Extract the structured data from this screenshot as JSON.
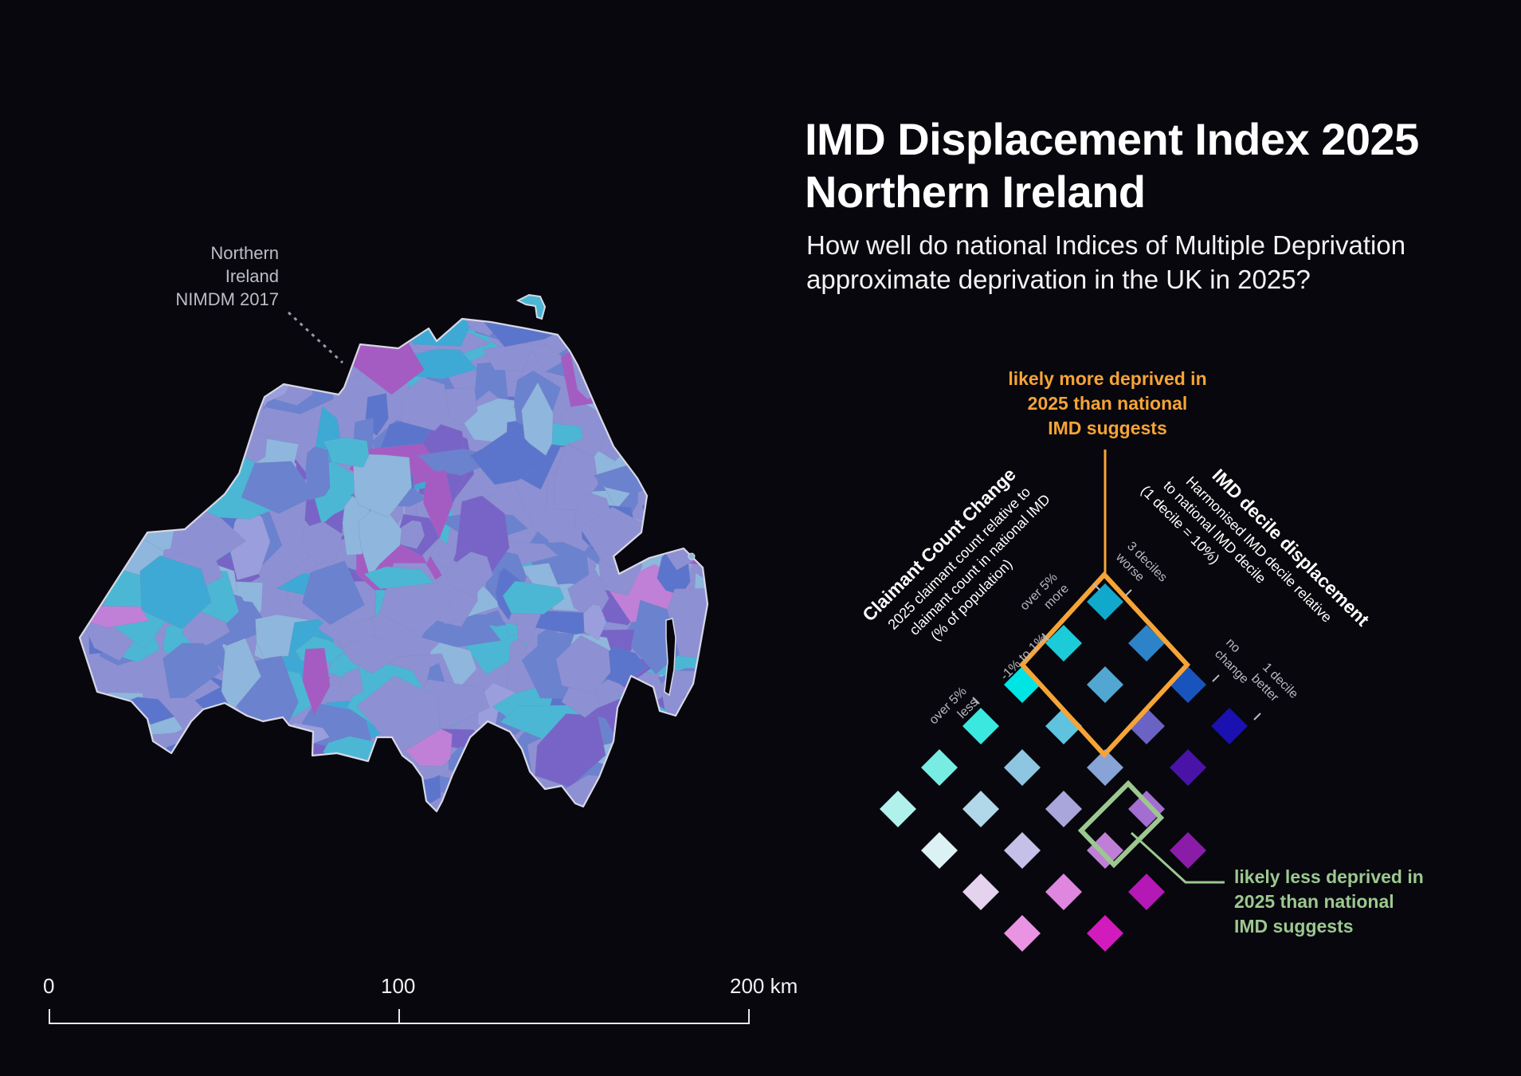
{
  "title_line1": "IMD Displacement Index 2025",
  "title_line2": "Northern Ireland",
  "subtitle_line1": "How well do national Indices of Multiple Deprivation",
  "subtitle_line2": "approximate deprivation in the UK in 2025?",
  "region_label": {
    "line1": "Northern",
    "line2": "Ireland",
    "line3": "NIMDM 2017"
  },
  "legend": {
    "callout_top": {
      "line1": "likely more deprived in",
      "line2": "2025 than national",
      "line3": "IMD suggests",
      "color": "#f6a437"
    },
    "callout_bottom": {
      "line1": "likely less deprived in",
      "line2": "2025 than national",
      "line3": "IMD suggests",
      "color": "#9cc890"
    },
    "left_axis": {
      "title": "Claimant Count Change",
      "desc1": "2025 claimant count relative to",
      "desc2": "claimant count in national IMD",
      "desc3": "(% of population)",
      "ticks": [
        {
          "l1": "over 5%",
          "l2": "more"
        },
        {
          "l1": "-1% to 1%",
          "l2": ""
        },
        {
          "l1": "over 5%",
          "l2": "less"
        }
      ]
    },
    "right_axis": {
      "title": "IMD decile displacement",
      "desc1": "Harmonised IMD decile relative",
      "desc2": "to national IMD decile",
      "desc3": "(1 decile = 10%)",
      "ticks": [
        {
          "l1": "3 deciles",
          "l2": "worse"
        },
        {
          "l1": "no",
          "l2": "change"
        },
        {
          "l1": "1 decile",
          "l2": "better"
        }
      ]
    },
    "grid_colors": [
      [
        "#11a9cb",
        "#2d83c8",
        "#1854bc",
        "#1a11b0"
      ],
      [
        "#1ccbd8",
        "#52a7d2",
        "#6a63c3",
        "#4a13a8"
      ],
      [
        "#00e4e4",
        "#5fc2de",
        "#88a3d5",
        "#a36ed0",
        "#8a1ca8"
      ],
      [
        "#3be8e0",
        "#8ec6e2",
        "#a9a6dc",
        "#c07fd6",
        "#b418b5"
      ],
      [
        "#78ece2",
        "#b1d8e9",
        "#c4c0e8",
        "#df86df",
        "#d21bbd"
      ],
      [
        "#b1f1ec",
        "#dcf1f4",
        "#e4d2ee",
        "#ea93e3"
      ]
    ],
    "highlight_more_color": "#f6a437",
    "highlight_less_color": "#9cc890"
  },
  "scale_bar": {
    "labels": [
      "0",
      "100",
      "200 km"
    ]
  },
  "map_colors": [
    "#8d91d3",
    "#6b82cf",
    "#4cb7d4",
    "#8fb6dc",
    "#7864c7",
    "#a55cc2",
    "#5c75cc",
    "#3fa9d5",
    "#9a9edc",
    "#c080d8"
  ]
}
